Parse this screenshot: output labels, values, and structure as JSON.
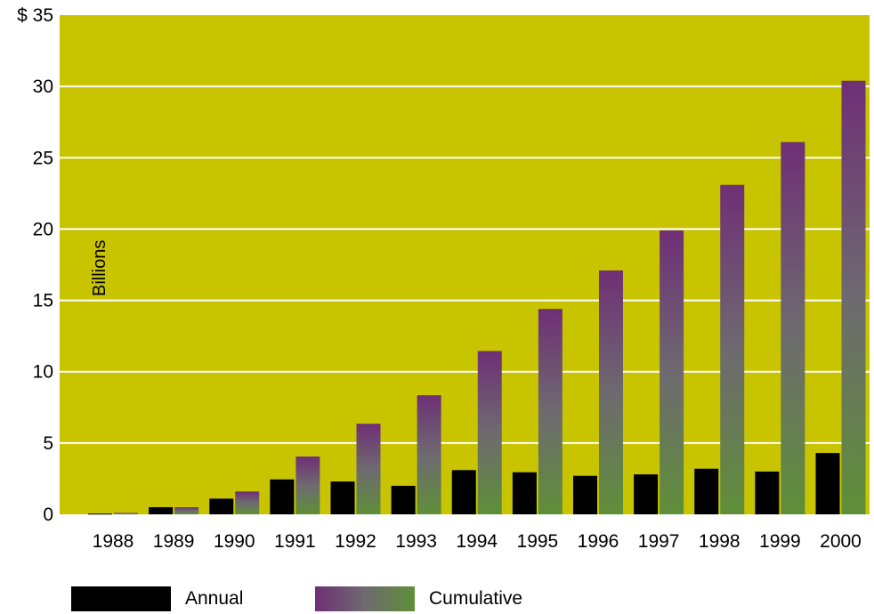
{
  "chart_data": {
    "type": "bar",
    "ylabel": "Billions",
    "ylim": [
      0,
      35
    ],
    "yticks": [
      "0",
      "5",
      "10",
      "15",
      "20",
      "25",
      "30",
      "$ 35"
    ],
    "grid": true,
    "legend_placement": "bottom",
    "categories": [
      "1988",
      "1989",
      "1990",
      "1991",
      "1992",
      "1993",
      "1994",
      "1995",
      "1996",
      "1997",
      "1998",
      "1999",
      "2000"
    ],
    "series": [
      {
        "name": "Annual",
        "values": [
          0.05,
          0.5,
          1.1,
          2.45,
          2.3,
          2.0,
          3.1,
          2.95,
          2.7,
          2.8,
          3.2,
          3.0,
          4.3
        ]
      },
      {
        "name": "Cumulative",
        "values": [
          0.1,
          0.5,
          1.6,
          4.05,
          6.35,
          8.35,
          11.45,
          14.4,
          17.1,
          19.9,
          23.1,
          26.1,
          30.4
        ]
      }
    ],
    "colors": {
      "plot_background": "#c9c400",
      "annual": "#000000",
      "cumulative_top": "#6f2f76",
      "cumulative_bottom": "#5f8f38",
      "gridline": "#ffffff"
    }
  }
}
